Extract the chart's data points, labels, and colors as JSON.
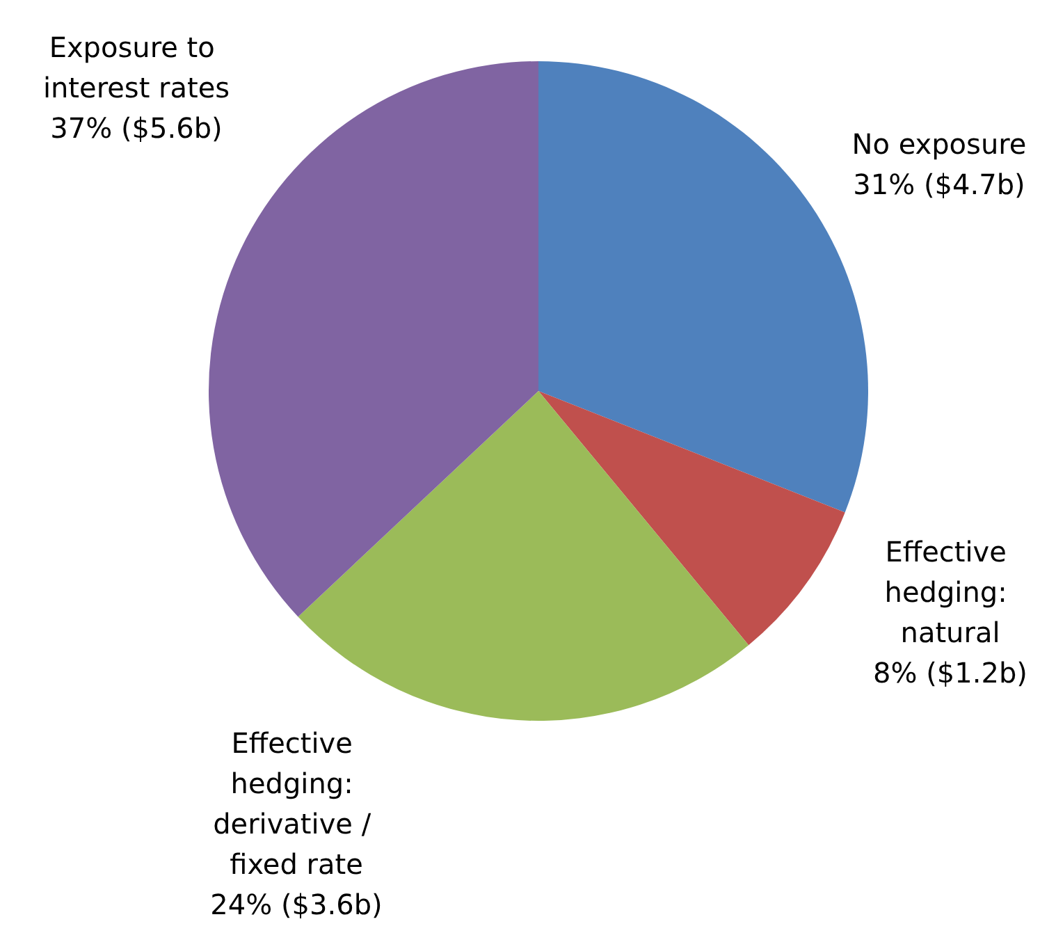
{
  "chart_data": {
    "type": "pie",
    "categories": [
      "No exposure",
      "Effective hedging: natural",
      "Effective hedging: derivative / fixed rate",
      "Exposure to interest rates"
    ],
    "values": [
      31,
      8,
      24,
      37
    ],
    "value_labels": [
      "31% ($4.7b)",
      "8% ($1.2b)",
      "24% ($3.6b)",
      "37% ($5.6b)"
    ],
    "colors": [
      "#4f81bd",
      "#c0504d",
      "#9bbb59",
      "#8064a2"
    ],
    "legend": false
  }
}
